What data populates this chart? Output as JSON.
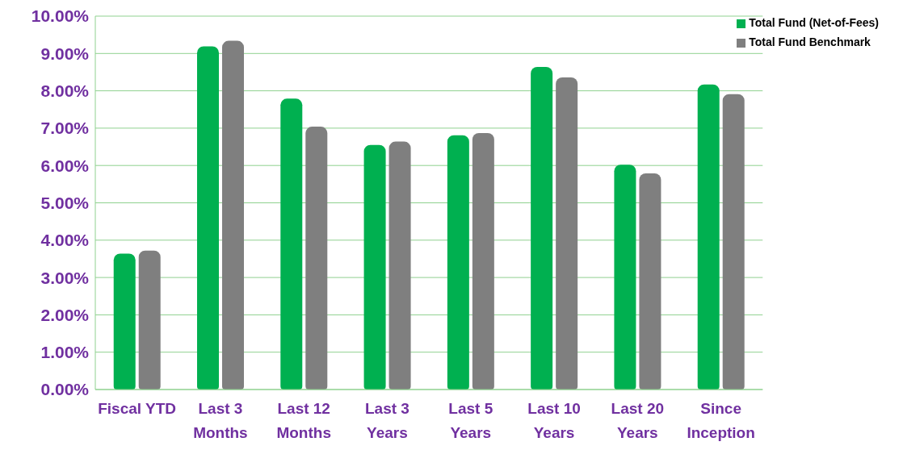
{
  "chart_data": {
    "type": "bar",
    "categories": [
      "Fiscal YTD",
      "Last 3 Months",
      "Last 12 Months",
      "Last 3 Years",
      "Last 5 Years",
      "Last 10 Years",
      "Last 20 Years",
      "Since Inception"
    ],
    "series": [
      {
        "name": "Total Fund (Net-of-Fees)",
        "color": "#00b050",
        "values": [
          3.64,
          9.19,
          7.79,
          6.55,
          6.81,
          8.64,
          6.02,
          8.17
        ]
      },
      {
        "name": "Total Fund Benchmark",
        "color": "#7f7f7f",
        "values": [
          3.72,
          9.34,
          7.04,
          6.64,
          6.87,
          8.36,
          5.79,
          7.91
        ]
      }
    ],
    "ylim": [
      0,
      10
    ],
    "yticks": [
      {
        "value": 0,
        "label": "0.00%"
      },
      {
        "value": 1,
        "label": "1.00%"
      },
      {
        "value": 2,
        "label": "2.00%"
      },
      {
        "value": 3,
        "label": "3.00%"
      },
      {
        "value": 4,
        "label": "4.00%"
      },
      {
        "value": 5,
        "label": "5.00%"
      },
      {
        "value": 6,
        "label": "6.00%"
      },
      {
        "value": 7,
        "label": "7.00%"
      },
      {
        "value": 8,
        "label": "8.00%"
      },
      {
        "value": 9,
        "label": "9.00%"
      },
      {
        "value": 10,
        "label": "10.00%"
      }
    ],
    "grid": "y",
    "legend": "top right"
  }
}
